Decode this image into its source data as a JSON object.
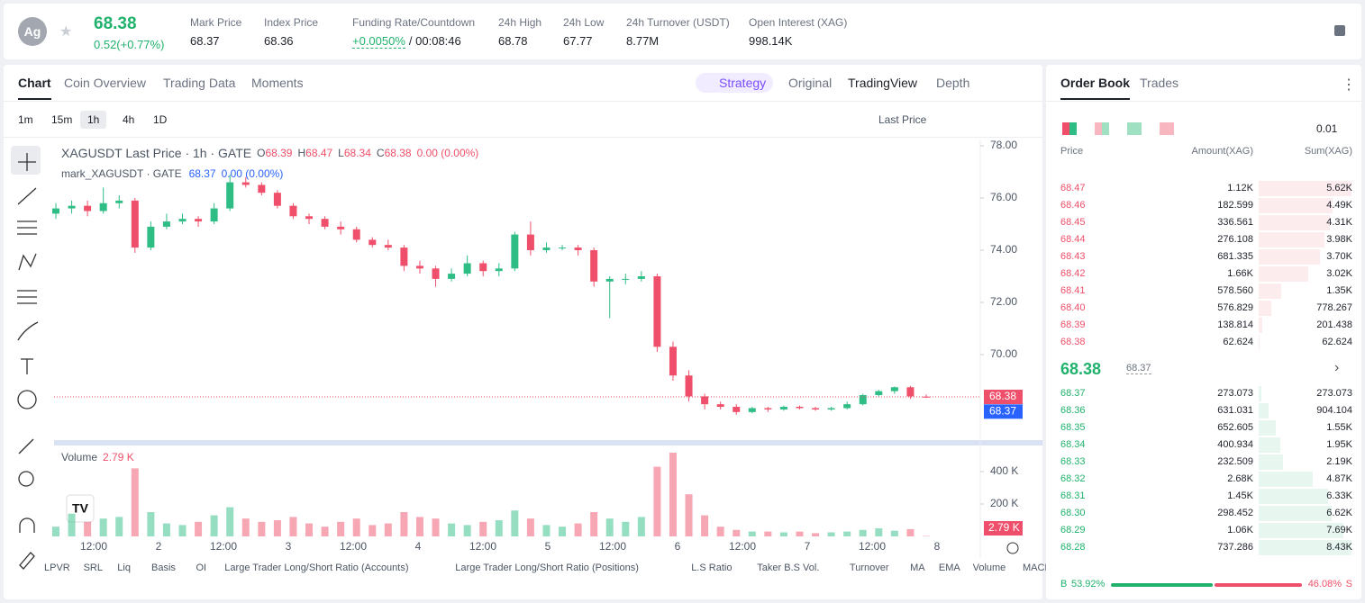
{
  "header": {
    "symbol_icon": "Ag",
    "price": "68.38",
    "change": "0.52(+0.77%)",
    "stats": [
      {
        "label": "Mark Price",
        "value": "68.37"
      },
      {
        "label": "Index Price",
        "value": "68.36"
      },
      {
        "label": "Funding Rate/Countdown",
        "value": "+0.0050%",
        "extra": "/ 00:08:46"
      },
      {
        "label": "24h High",
        "value": "68.78"
      },
      {
        "label": "24h Low",
        "value": "67.77"
      },
      {
        "label": "24h Turnover (USDT)",
        "value": "8.77M"
      },
      {
        "label": "Open Interest (XAG)",
        "value": "998.14K"
      }
    ]
  },
  "tabs": [
    "Chart",
    "Coin Overview",
    "Trading Data",
    "Moments"
  ],
  "views": [
    "Strategy",
    "Original",
    "TradingView",
    "Depth"
  ],
  "intervals": [
    "1m",
    "15m",
    "1h",
    "4h",
    "1D"
  ],
  "price_source": "Last Price",
  "indicators": [
    "LPVR",
    "SRL",
    "Liq",
    "Basis",
    "OI",
    "Large Trader Long/Short Ratio (Accounts)",
    "Large Trader Long/Short Ratio (Positions)",
    "L.S Ratio",
    "Taker B.S Vol.",
    "Turnover",
    "MA",
    "EMA",
    "Volume",
    "MACD"
  ],
  "chart_data": {
    "type": "candlestick",
    "title": "XAGUSDT Last Price · 1h · GATE",
    "legend_keys": [
      "O",
      "H",
      "L",
      "C"
    ],
    "legend_change": "0.00 (0.00%)",
    "mark_name": "mark_XAGUSDT · GATE",
    "mark_price": 68.37,
    "mark_change": "0.00 (0.00%)",
    "up_color": "#2ebd85",
    "down_color": "#ef4f6a",
    "candles": [
      [
        75.4,
        75.8,
        75.2,
        75.6
      ],
      [
        75.6,
        75.9,
        75.4,
        75.7
      ],
      [
        75.7,
        75.9,
        75.3,
        75.5
      ],
      [
        75.5,
        76.4,
        75.4,
        75.8
      ],
      [
        75.8,
        76.1,
        75.6,
        75.9
      ],
      [
        75.9,
        76.0,
        73.9,
        74.1
      ],
      [
        74.1,
        75.1,
        74.0,
        74.9
      ],
      [
        74.9,
        75.4,
        74.8,
        75.1
      ],
      [
        75.1,
        75.4,
        75.0,
        75.2
      ],
      [
        75.2,
        75.3,
        74.9,
        75.1
      ],
      [
        75.1,
        75.8,
        75.0,
        75.6
      ],
      [
        75.6,
        76.9,
        75.5,
        76.6
      ],
      [
        76.6,
        76.8,
        76.4,
        76.5
      ],
      [
        76.5,
        76.6,
        76.1,
        76.2
      ],
      [
        76.2,
        76.3,
        75.6,
        75.7
      ],
      [
        75.7,
        75.8,
        75.2,
        75.3
      ],
      [
        75.3,
        75.4,
        75.0,
        75.2
      ],
      [
        75.2,
        75.3,
        74.8,
        74.9
      ],
      [
        74.9,
        75.1,
        74.6,
        74.8
      ],
      [
        74.8,
        74.9,
        74.3,
        74.4
      ],
      [
        74.4,
        74.5,
        74.1,
        74.2
      ],
      [
        74.2,
        74.4,
        74.0,
        74.1
      ],
      [
        74.1,
        74.2,
        73.2,
        73.4
      ],
      [
        73.4,
        73.6,
        73.1,
        73.3
      ],
      [
        73.3,
        73.4,
        72.6,
        72.9
      ],
      [
        72.9,
        73.3,
        72.8,
        73.1
      ],
      [
        73.1,
        73.8,
        73.0,
        73.5
      ],
      [
        73.5,
        73.6,
        73.0,
        73.2
      ],
      [
        73.2,
        73.5,
        73.0,
        73.3
      ],
      [
        73.3,
        74.7,
        73.2,
        74.6
      ],
      [
        74.6,
        75.1,
        73.8,
        74.0
      ],
      [
        74.0,
        74.3,
        73.9,
        74.1
      ],
      [
        74.1,
        74.2,
        74.0,
        74.1
      ],
      [
        74.1,
        74.2,
        73.8,
        74.0
      ],
      [
        74.0,
        74.1,
        72.6,
        72.8
      ],
      [
        72.8,
        73.0,
        71.4,
        72.9
      ],
      [
        72.9,
        73.1,
        72.7,
        72.9
      ],
      [
        72.9,
        73.2,
        72.8,
        73.0
      ],
      [
        73.0,
        73.1,
        70.1,
        70.3
      ],
      [
        70.3,
        70.5,
        69.0,
        69.2
      ],
      [
        69.2,
        69.4,
        68.2,
        68.4
      ],
      [
        68.4,
        68.5,
        67.9,
        68.1
      ],
      [
        68.1,
        68.2,
        67.9,
        68.0
      ],
      [
        68.0,
        68.1,
        67.7,
        67.8
      ],
      [
        67.8,
        68.0,
        67.75,
        67.95
      ],
      [
        67.95,
        68.0,
        67.8,
        67.9
      ],
      [
        67.9,
        68.05,
        67.85,
        68.0
      ],
      [
        68.0,
        68.05,
        67.9,
        67.95
      ],
      [
        67.95,
        68.0,
        67.85,
        67.9
      ],
      [
        67.9,
        68.0,
        67.85,
        67.95
      ],
      [
        67.95,
        68.2,
        67.9,
        68.1
      ],
      [
        68.1,
        68.5,
        68.05,
        68.45
      ],
      [
        68.45,
        68.65,
        68.4,
        68.6
      ],
      [
        68.6,
        68.78,
        68.5,
        68.75
      ],
      [
        68.75,
        68.8,
        68.3,
        68.4
      ],
      [
        68.39,
        68.47,
        68.34,
        68.38
      ]
    ],
    "ylim": [
      66.76,
      78.24
    ],
    "yticks": [
      {
        "value": 78,
        "label": "78.00"
      },
      {
        "value": 76,
        "label": "76.00"
      },
      {
        "value": 74,
        "label": "74.00"
      },
      {
        "value": 72,
        "label": "72.00"
      },
      {
        "value": 70,
        "label": "70.00"
      }
    ],
    "xtick_labels": [
      "12:00",
      "2",
      "12:00",
      "3",
      "12:00",
      "4",
      "12:00",
      "5",
      "12:00",
      "6",
      "12:00",
      "7",
      "12:00",
      "8"
    ],
    "volume": {
      "label": "Volume",
      "values": [
        60,
        140,
        90,
        110,
        120,
        420,
        150,
        80,
        70,
        90,
        130,
        180,
        110,
        90,
        100,
        120,
        80,
        60,
        90,
        110,
        70,
        80,
        150,
        120,
        110,
        80,
        70,
        90,
        100,
        160,
        110,
        70,
        60,
        80,
        150,
        110,
        90,
        120,
        430,
        517,
        260,
        130,
        60,
        40,
        30,
        30,
        25,
        30,
        20,
        25,
        30,
        40,
        50,
        35,
        45,
        2.79
      ],
      "last_value_label": "2.79 K",
      "ylim": [
        0,
        550
      ],
      "yticks": [
        {
          "value": 400,
          "label": "400 K"
        },
        {
          "value": 200,
          "label": "200 K"
        }
      ]
    }
  },
  "order_book": {
    "tabs": [
      "Order Book",
      "Trades"
    ],
    "precision": "0.01",
    "headers": [
      "Price",
      "Amount(XAG)",
      "Sum(XAG)"
    ],
    "asks": [
      {
        "price": "68.47",
        "amount": "1.12K",
        "sum": 5620,
        "sum_label": "5.62K"
      },
      {
        "price": "68.46",
        "amount": "182.599",
        "sum": 4490,
        "sum_label": "4.49K"
      },
      {
        "price": "68.45",
        "amount": "336.561",
        "sum": 4310,
        "sum_label": "4.31K"
      },
      {
        "price": "68.44",
        "amount": "276.108",
        "sum": 3980,
        "sum_label": "3.98K"
      },
      {
        "price": "68.43",
        "amount": "681.335",
        "sum": 3700,
        "sum_label": "3.70K"
      },
      {
        "price": "68.42",
        "amount": "1.66K",
        "sum": 3020,
        "sum_label": "3.02K"
      },
      {
        "price": "68.41",
        "amount": "578.560",
        "sum": 1350,
        "sum_label": "1.35K"
      },
      {
        "price": "68.40",
        "amount": "576.829",
        "sum": 778.267,
        "sum_label": "778.267"
      },
      {
        "price": "68.39",
        "amount": "138.814",
        "sum": 201.438,
        "sum_label": "201.438"
      },
      {
        "price": "68.38",
        "amount": "62.624",
        "sum": 62.624,
        "sum_label": "62.624"
      }
    ],
    "mid_price": "68.38",
    "mid_mark": "68.37",
    "bids": [
      {
        "price": "68.37",
        "amount": "273.073",
        "sum": 273.073,
        "sum_label": "273.073"
      },
      {
        "price": "68.36",
        "amount": "631.031",
        "sum": 904.104,
        "sum_label": "904.104"
      },
      {
        "price": "68.35",
        "amount": "652.605",
        "sum": 1550,
        "sum_label": "1.55K"
      },
      {
        "price": "68.34",
        "amount": "400.934",
        "sum": 1950,
        "sum_label": "1.95K"
      },
      {
        "price": "68.33",
        "amount": "232.509",
        "sum": 2190,
        "sum_label": "2.19K"
      },
      {
        "price": "68.32",
        "amount": "2.68K",
        "sum": 4870,
        "sum_label": "4.87K"
      },
      {
        "price": "68.31",
        "amount": "1.45K",
        "sum": 6330,
        "sum_label": "6.33K"
      },
      {
        "price": "68.30",
        "amount": "298.452",
        "sum": 6620,
        "sum_label": "6.62K"
      },
      {
        "price": "68.29",
        "amount": "1.06K",
        "sum": 7690,
        "sum_label": "7.69K"
      },
      {
        "price": "68.28",
        "amount": "737.286",
        "sum": 8430,
        "sum_label": "8.43K"
      }
    ],
    "buy": {
      "side": "B",
      "value": 53.92,
      "label": "53.92%"
    },
    "sell": {
      "side": "S",
      "value": 46.08,
      "label": "46.08%"
    }
  }
}
